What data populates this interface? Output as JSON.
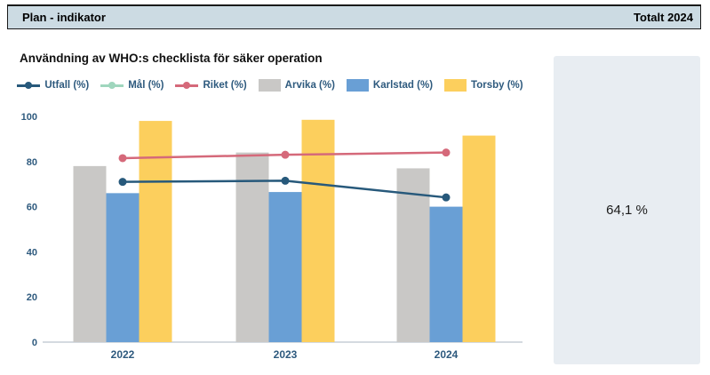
{
  "header": {
    "title": "Plan - indikator",
    "right_label": "Totalt 2024"
  },
  "summary_panel": {
    "value": "64,1 %"
  },
  "chart_data": {
    "type": "bar+line",
    "title": "Användning av WHO:s checklista för säker operation",
    "categories": [
      "2022",
      "2023",
      "2024"
    ],
    "bar_series": [
      {
        "name": "Arvika (%)",
        "color": "#c9c8c6",
        "values": [
          78,
          84,
          77
        ]
      },
      {
        "name": "Karlstad (%)",
        "color": "#699fd5",
        "values": [
          66,
          66.5,
          60
        ]
      },
      {
        "name": "Torsby (%)",
        "color": "#fccf5d",
        "values": [
          98,
          98.5,
          91.5
        ]
      }
    ],
    "line_series": [
      {
        "name": "Utfall (%)",
        "color": "#27597b",
        "values": [
          71,
          71.5,
          64.1
        ]
      },
      {
        "name": "Mål (%)",
        "color": "#9fd6bd",
        "values": []
      },
      {
        "name": "Riket (%)",
        "color": "#d5697a",
        "values": [
          81.5,
          83,
          84
        ]
      }
    ],
    "legend": [
      {
        "label": "Utfall (%)",
        "color": "#27597b",
        "marker": "line"
      },
      {
        "label": "Mål (%)",
        "color": "#9fd6bd",
        "marker": "line"
      },
      {
        "label": "Riket (%)",
        "color": "#d5697a",
        "marker": "line"
      },
      {
        "label": "Arvika (%)",
        "color": "#c9c8c6",
        "marker": "square"
      },
      {
        "label": "Karlstad (%)",
        "color": "#699fd5",
        "marker": "square"
      },
      {
        "label": "Torsby (%)",
        "color": "#fccf5d",
        "marker": "square"
      }
    ],
    "ylabel": "",
    "xlabel": "",
    "ylim": [
      0,
      100
    ],
    "yticks": [
      0,
      20,
      40,
      60,
      80,
      100
    ],
    "grid": false,
    "legend_position": "top",
    "axis_color": "#c6cdd6"
  }
}
